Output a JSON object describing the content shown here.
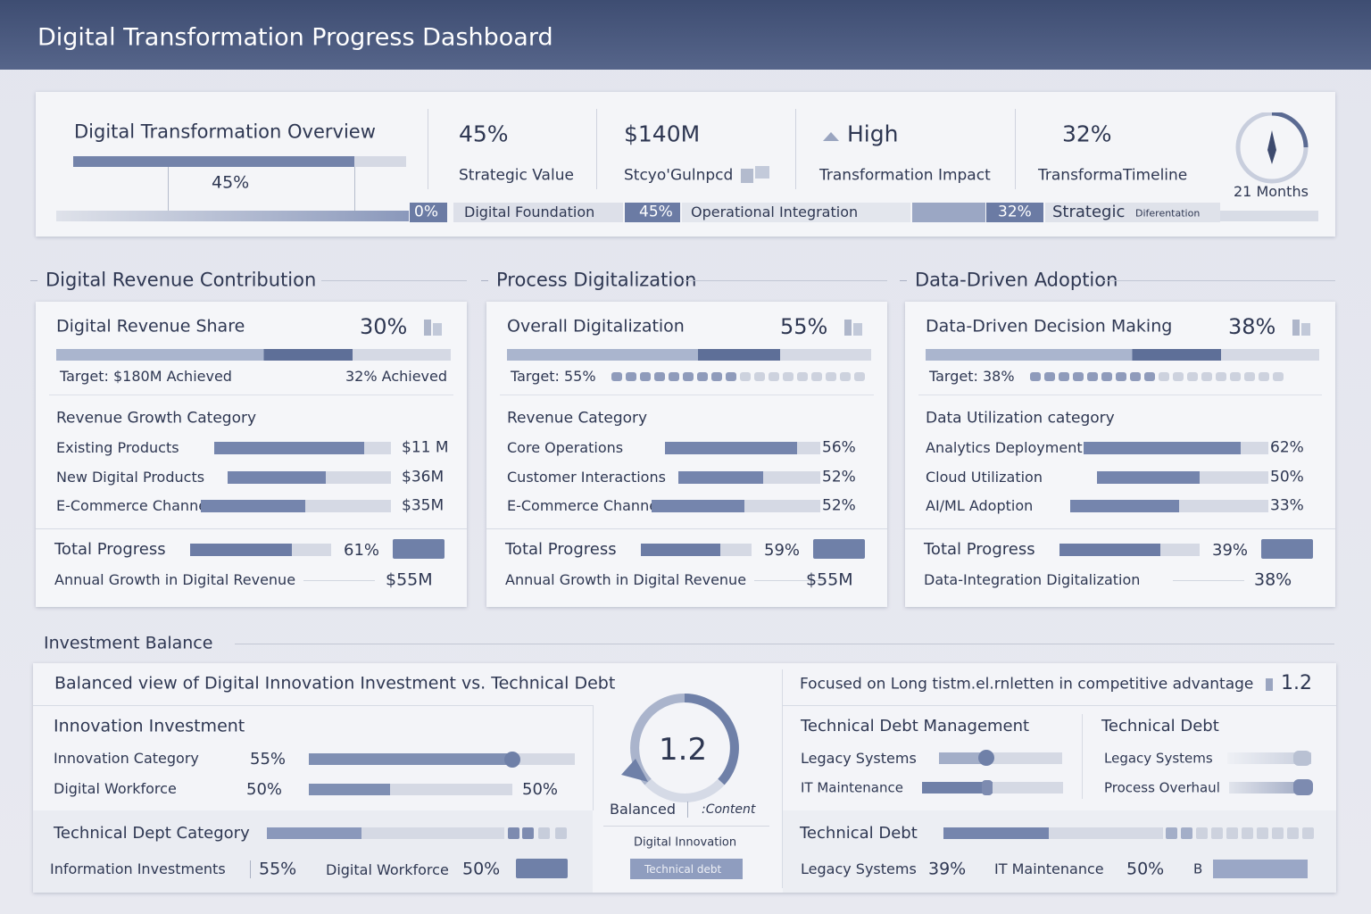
{
  "header": {
    "title": "Digital Transformation Progress Dashboard"
  },
  "overview": {
    "title": "Digital Transformation Overview",
    "progress": "45%",
    "kpis": [
      {
        "value": "45%",
        "label": "Strategic Value"
      },
      {
        "value": "$140M",
        "label": "Stcyo'Gulnpcd"
      },
      {
        "value": "High",
        "label": "Transformation Impact"
      },
      {
        "value": "32%",
        "label": "TransformaTimeline"
      }
    ],
    "timeline": "21 Months",
    "stages": [
      {
        "value": "0%",
        "label": "Digital Foundation"
      },
      {
        "value": "45%",
        "label": "Operational Integration"
      },
      {
        "value": "32%",
        "label": "Strategic",
        "note": "Diferentation"
      }
    ]
  },
  "sections": [
    {
      "heading": "Digital Revenue Contribution",
      "metric": "Digital Revenue Share",
      "value": "30%",
      "target": "Target: $180M  Achieved",
      "target_value": "32% Achieved",
      "category": "Revenue Growth Category",
      "rows": [
        {
          "label": "Existing Products",
          "value": "$11 M"
        },
        {
          "label": "New Digital Products",
          "value": "$36M"
        },
        {
          "label": "E-Commerce Channel",
          "value": "$35M"
        }
      ],
      "total_label": "Total Progress",
      "total_value": "61%",
      "footer_label": "Annual Growth in Digital Revenue",
      "footer_value": "$55M"
    },
    {
      "heading": "Process Digitalization",
      "metric": "Overall Digitalization",
      "value": "55%",
      "target": "Target: 55%",
      "category": "Revenue Category",
      "rows": [
        {
          "label": "Core Operations",
          "value": "56%"
        },
        {
          "label": "Customer Interactions",
          "value": "52%"
        },
        {
          "label": "E-Commerce Channel",
          "value": "52%"
        }
      ],
      "total_label": "Total Progress",
      "total_value": "59%",
      "footer_label": "Annual Growth in Digital Revenue",
      "footer_value": "$55M"
    },
    {
      "heading": "Data-Driven Adoption",
      "metric": "Data-Driven Decision Making",
      "value": "38%",
      "target": "Target: 38%",
      "category": "Data Utilization category",
      "rows": [
        {
          "label": "Analytics Deployment",
          "value": "62%"
        },
        {
          "label": "Cloud Utilization",
          "value": "50%"
        },
        {
          "label": "AI/ML Adoption",
          "value": "33%"
        }
      ],
      "total_label": "Total Progress",
      "total_value": "39%",
      "footer_label": "Data-Integration Digitalization",
      "footer_value": "38%"
    }
  ],
  "investment": {
    "heading": "Investment Balance",
    "subtitle": "Balanced view of Digital Innovation Investment vs. Technical Debt",
    "innovation": {
      "title": "Innovation Investment",
      "rows": [
        {
          "label": "Innovation Category",
          "value": "55%"
        },
        {
          "label": "Digital Workforce",
          "value": "50%",
          "end_value": "50%"
        }
      ]
    },
    "tech_category": {
      "title": "Technical Dept Category",
      "items": [
        {
          "label": "Information Investments",
          "value": "55%"
        },
        {
          "label": "Digital Workforce",
          "value": "50%"
        }
      ]
    },
    "gauge": {
      "value": "1.2",
      "label": "Balanced",
      "note": ":Content",
      "caption": "Digital Innovation",
      "button": "Technical debt"
    },
    "right": {
      "subtitle": "Focused on Long tistm.el.rnletten in competitive advantage",
      "value": "1.2",
      "management": {
        "title": "Technical Debt Management",
        "rows": [
          "Legacy Systems",
          "IT Maintenance"
        ]
      },
      "debt": {
        "title": "Technical Debt",
        "rows": [
          "Legacy Systems",
          "Process Overhaul"
        ]
      },
      "summary": {
        "title": "Technical Debt",
        "items": [
          {
            "label": "Legacy Systems",
            "value": "39%"
          },
          {
            "label": "IT Maintenance",
            "value": "50%"
          }
        ],
        "extra": "B"
      }
    }
  }
}
